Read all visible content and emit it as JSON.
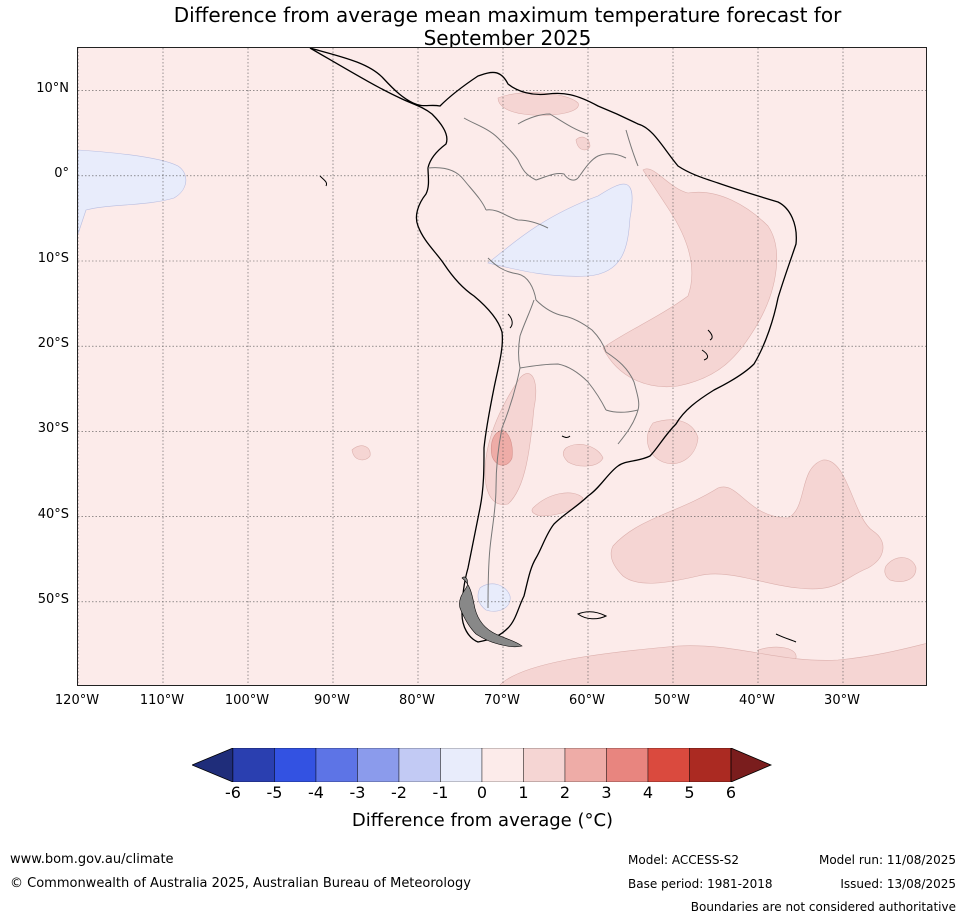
{
  "title": {
    "line1": "Difference from average mean maximum temperature forecast for",
    "line2": "September 2025"
  },
  "map": {
    "extent": {
      "lon_min": -120,
      "lon_max": -20,
      "lat_min": -60,
      "lat_max": 15
    },
    "lat_ticks": [
      {
        "lat": 10,
        "label": "10°N"
      },
      {
        "lat": 0,
        "label": "0°"
      },
      {
        "lat": -10,
        "label": "10°S"
      },
      {
        "lat": -20,
        "label": "20°S"
      },
      {
        "lat": -30,
        "label": "30°S"
      },
      {
        "lat": -40,
        "label": "40°S"
      },
      {
        "lat": -50,
        "label": "50°S"
      }
    ],
    "lon_ticks": [
      {
        "lon": -120,
        "label": "120°W"
      },
      {
        "lon": -110,
        "label": "110°W"
      },
      {
        "lon": -100,
        "label": "100°W"
      },
      {
        "lon": -90,
        "label": "90°W"
      },
      {
        "lon": -80,
        "label": "80°W"
      },
      {
        "lon": -70,
        "label": "70°W"
      },
      {
        "lon": -60,
        "label": "60°W"
      },
      {
        "lon": -50,
        "label": "50°W"
      },
      {
        "lon": -40,
        "label": "40°W"
      },
      {
        "lon": -30,
        "label": "30°W"
      }
    ]
  },
  "colorbar": {
    "ticks": [
      "-6",
      "-5",
      "-4",
      "-3",
      "-2",
      "-1",
      "0",
      "1",
      "2",
      "3",
      "4",
      "5",
      "6"
    ],
    "colors": [
      "#2a3fb0",
      "#3352e2",
      "#5d74e6",
      "#8b9bec",
      "#c2caf4",
      "#e8ecfb",
      "#fcebea",
      "#f5d5d3",
      "#eeaca7",
      "#e8857f",
      "#da4a3e",
      "#ab2a22"
    ],
    "under_color": "#1f2d7a",
    "over_color": "#7a1d1d",
    "label": "Difference from average (°C)"
  },
  "footer": {
    "website": "www.bom.gov.au/climate",
    "copyright": "© Commonwealth of Australia 2025, Australian Bureau of Meteorology",
    "model": "Model: ACCESS-S2",
    "base_period": "Base period: 1981-2018",
    "model_run": "Model run: 11/08/2025",
    "issued": "Issued: 13/08/2025",
    "disclaimer": "Boundaries are not considered authoritative"
  }
}
